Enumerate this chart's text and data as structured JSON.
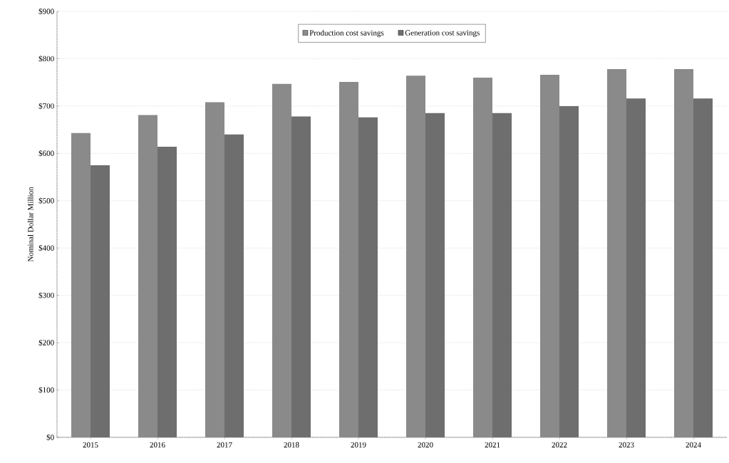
{
  "chart_data": {
    "type": "bar",
    "ylabel": "Nominal Dollar Million",
    "categories": [
      "2015",
      "2016",
      "2017",
      "2018",
      "2019",
      "2020",
      "2021",
      "2022",
      "2023",
      "2024"
    ],
    "series": [
      {
        "name": "Production cost savings",
        "color": "#8a8a8a",
        "values": [
          643,
          681,
          708,
          747,
          751,
          764,
          760,
          766,
          778,
          778
        ]
      },
      {
        "name": "Generation cost savings",
        "color": "#6e6e6e",
        "values": [
          575,
          614,
          640,
          678,
          676,
          685,
          685,
          700,
          716,
          716
        ]
      }
    ],
    "ylim": [
      0,
      900
    ],
    "yticks": [
      {
        "value": 0,
        "label": "$0"
      },
      {
        "value": 100,
        "label": "$100"
      },
      {
        "value": 200,
        "label": "$200"
      },
      {
        "value": 300,
        "label": "$300"
      },
      {
        "value": 400,
        "label": "$400"
      },
      {
        "value": 500,
        "label": "$500"
      },
      {
        "value": 600,
        "label": "$600"
      },
      {
        "value": 700,
        "label": "$700"
      },
      {
        "value": 800,
        "label": "$800"
      },
      {
        "value": 900,
        "label": "$900"
      }
    ],
    "grid": "y",
    "legend": "top"
  }
}
